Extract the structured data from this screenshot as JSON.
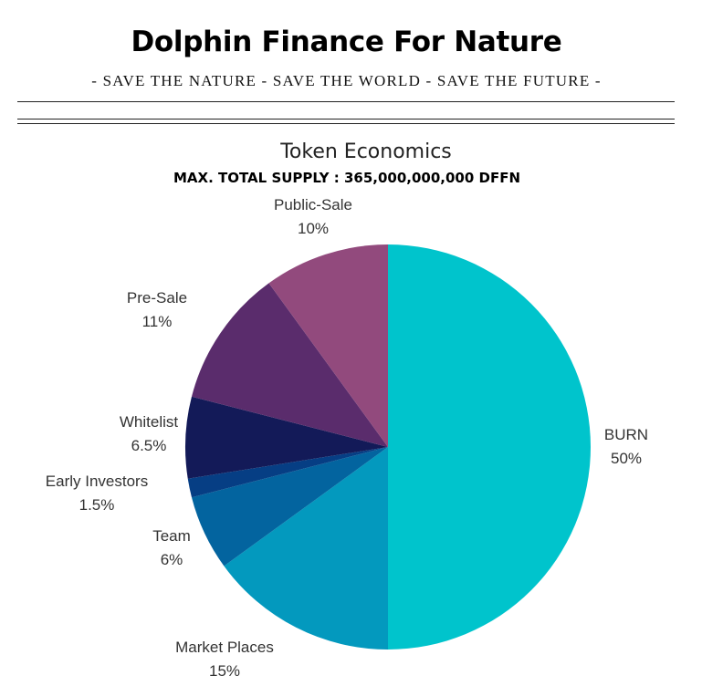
{
  "header": {
    "title": "Dolphin Finance For Nature",
    "tagline": "- SAVE THE NATURE - SAVE THE WORLD - SAVE THE FUTURE -"
  },
  "chart_data": {
    "type": "pie",
    "title": "Token Economics",
    "subtitle": "MAX. TOTAL SUPPLY : 365,000,000,000 DFFN",
    "slices": [
      {
        "label": "BURN",
        "value": 50,
        "value_label": "50%",
        "color": "#00C4CC"
      },
      {
        "label": "Market Places",
        "value": 15,
        "value_label": "15%",
        "color": "#0399BE"
      },
      {
        "label": "Team",
        "value": 6,
        "value_label": "6%",
        "color": "#03649F"
      },
      {
        "label": "Early Investors",
        "value": 1.5,
        "value_label": "1.5%",
        "color": "#063E84"
      },
      {
        "label": "Whitelist",
        "value": 6.5,
        "value_label": "6.5%",
        "color": "#131A58"
      },
      {
        "label": "Pre-Sale",
        "value": 11,
        "value_label": "11%",
        "color": "#5A2C6C"
      },
      {
        "label": "Public-Sale",
        "value": 10,
        "value_label": "10%",
        "color": "#924A7D"
      }
    ],
    "start_angle": "12 o'clock",
    "direction": "clockwise",
    "legend": "none"
  }
}
